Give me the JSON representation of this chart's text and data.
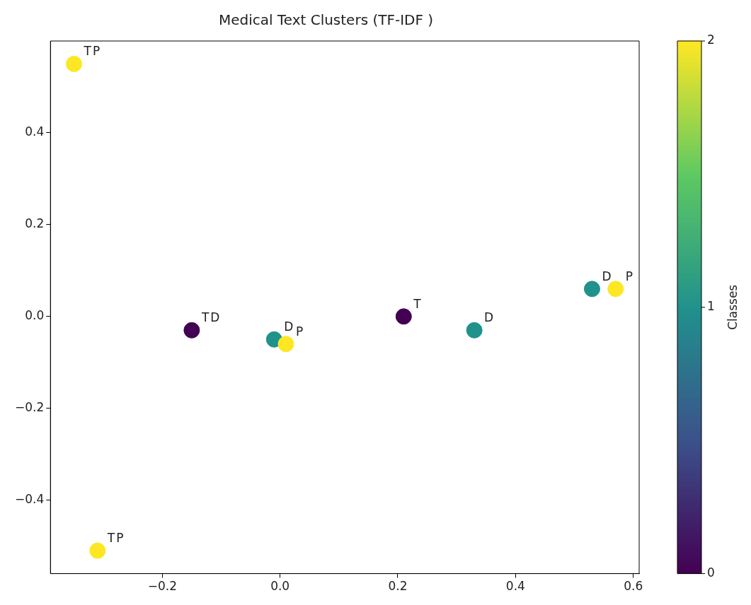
{
  "chart_data": {
    "type": "scatter",
    "title": "Medical Text Clusters (TF-IDF )",
    "clabel": "Classes",
    "x": [
      -0.35,
      -0.31,
      -0.15,
      -0.01,
      0.01,
      0.21,
      0.33,
      0.53,
      0.57
    ],
    "values": [
      0.55,
      -0.51,
      -0.03,
      -0.05,
      -0.06,
      0,
      -0.03,
      0.06,
      0.06
    ],
    "cvalues": [
      2,
      2,
      0,
      1,
      2,
      0,
      1,
      1,
      2
    ],
    "clim": [
      0,
      2
    ],
    "cticks": [
      0,
      1,
      2
    ],
    "xlim": [
      -0.39,
      0.61
    ],
    "ylim": [
      -0.56,
      0.6
    ],
    "xticks": [
      {
        "value": -0.2,
        "label": "−0.2"
      },
      {
        "value": 0,
        "label": "0.0"
      },
      {
        "value": 0.2,
        "label": "0.2"
      },
      {
        "value": 0.4,
        "label": "0.4"
      },
      {
        "value": 0.6,
        "label": "0.6"
      }
    ],
    "yticks": [
      {
        "value": -0.4,
        "label": "−0.4"
      },
      {
        "value": -0.2,
        "label": "−0.2"
      },
      {
        "value": 0,
        "label": "0.0"
      },
      {
        "value": 0.2,
        "label": "0.2"
      },
      {
        "value": 0.4,
        "label": "0.4"
      }
    ],
    "grid": false,
    "legend": false,
    "marker": "circle",
    "annotations": [
      {
        "text": "T",
        "x": -0.35,
        "y": 0.55
      },
      {
        "text": "P",
        "x": -0.35,
        "y": 0.55
      },
      {
        "text": "T",
        "x": -0.31,
        "y": -0.51
      },
      {
        "text": "P",
        "x": -0.31,
        "y": -0.51
      },
      {
        "text": "T",
        "x": -0.15,
        "y": -0.03
      },
      {
        "text": "D",
        "x": -0.15,
        "y": -0.03
      },
      {
        "text": "D",
        "x": -0.01,
        "y": -0.05
      },
      {
        "text": "P",
        "x": 0.01,
        "y": -0.06
      },
      {
        "text": "T",
        "x": 0.21,
        "y": 0
      },
      {
        "text": "D",
        "x": 0.33,
        "y": -0.03
      },
      {
        "text": "D",
        "x": 0.53,
        "y": 0.06
      },
      {
        "text": "P",
        "x": 0.57,
        "y": 0.06
      }
    ]
  }
}
